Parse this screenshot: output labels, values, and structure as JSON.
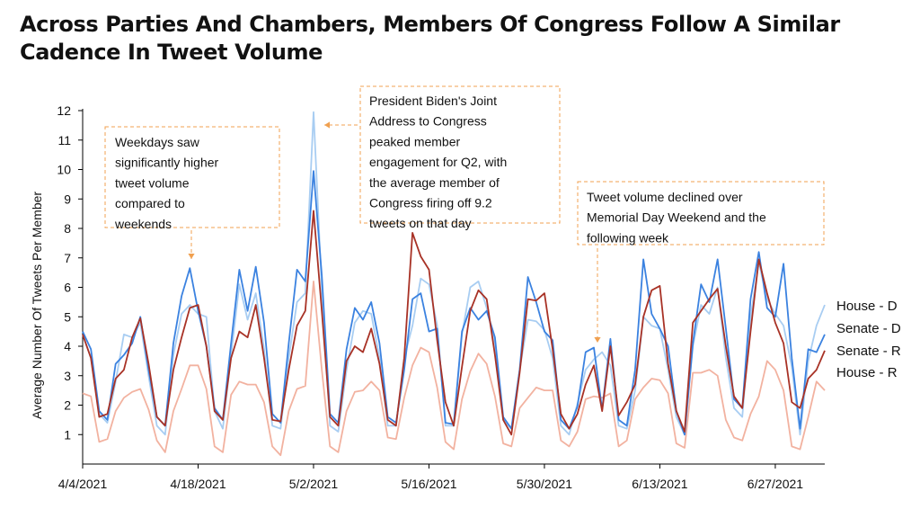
{
  "chart_data": {
    "type": "line",
    "title": "Across Parties And Chambers, Members Of Congress Follow A Similar Cadence In Tweet Volume",
    "xlabel": "",
    "ylabel": "Average Number Of Tweets Per Member",
    "ylim": [
      0,
      12
    ],
    "yticks": [
      1,
      2,
      3,
      4,
      5,
      6,
      7,
      8,
      9,
      10,
      11,
      12
    ],
    "x_start": "4/4/2021",
    "x_end": "6/30/2021",
    "xticks": [
      "4/4/2021",
      "4/18/2021",
      "5/2/2021",
      "5/16/2021",
      "5/30/2021",
      "6/13/2021",
      "6/27/2021"
    ],
    "grid": false,
    "legend": "right",
    "series": [
      {
        "name": "House - D",
        "color": "#3b82e0",
        "values": [
          4.5,
          3.9,
          1.8,
          1.5,
          3.4,
          3.7,
          4.1,
          5.0,
          3.2,
          1.6,
          1.3,
          4.1,
          5.7,
          6.65,
          5.2,
          4.0,
          1.9,
          1.5,
          4.1,
          6.6,
          5.2,
          6.7,
          4.8,
          1.7,
          1.4,
          4.1,
          6.6,
          6.2,
          9.95,
          6.4,
          1.7,
          1.4,
          3.9,
          5.3,
          4.9,
          5.5,
          4.1,
          1.6,
          1.4,
          3.2,
          5.6,
          5.8,
          4.5,
          4.6,
          1.4,
          1.35,
          4.5,
          5.3,
          4.9,
          5.2,
          4.3,
          1.6,
          1.2,
          3.2,
          6.35,
          5.5,
          4.5,
          4.2,
          1.5,
          1.2,
          1.95,
          3.8,
          3.95,
          1.85,
          4.25,
          1.5,
          1.3,
          3.2,
          6.95,
          5.1,
          4.6,
          4.0,
          1.8,
          1.0,
          4.1,
          6.1,
          5.5,
          6.95,
          4.6,
          2.2,
          1.9,
          5.6,
          7.2,
          5.3,
          5.0,
          6.8,
          3.6,
          1.2,
          3.9,
          3.8,
          4.4
        ]
      },
      {
        "name": "Senate - D",
        "color": "#a8cdf2",
        "values": [
          4.4,
          3.6,
          1.7,
          1.4,
          2.8,
          4.4,
          4.3,
          4.8,
          3.0,
          1.3,
          1.0,
          3.7,
          5.1,
          5.4,
          5.1,
          5.0,
          1.8,
          1.2,
          3.7,
          6.1,
          4.9,
          5.8,
          3.9,
          1.3,
          1.2,
          3.6,
          5.5,
          5.8,
          11.95,
          5.9,
          1.3,
          1.1,
          3.2,
          4.8,
          5.2,
          5.1,
          3.6,
          1.3,
          1.3,
          3.6,
          4.7,
          6.3,
          6.1,
          4.7,
          1.3,
          1.3,
          4.4,
          6.0,
          6.2,
          5.3,
          4.1,
          1.5,
          1.2,
          3.2,
          4.9,
          4.85,
          4.55,
          3.6,
          1.3,
          1.0,
          2.05,
          3.2,
          3.55,
          3.8,
          3.35,
          1.3,
          1.2,
          2.5,
          5.0,
          4.7,
          4.6,
          3.2,
          1.6,
          1.0,
          4.0,
          5.4,
          5.1,
          6.0,
          3.6,
          1.9,
          1.6,
          5.0,
          6.85,
          5.6,
          5.1,
          4.7,
          3.3,
          1.0,
          3.5,
          4.7,
          5.4
        ]
      },
      {
        "name": "Senate - R",
        "color": "#a83226",
        "values": [
          4.4,
          3.6,
          1.6,
          1.7,
          2.9,
          3.2,
          4.3,
          4.95,
          3.4,
          1.6,
          1.3,
          3.2,
          4.3,
          5.3,
          5.4,
          4.0,
          1.8,
          1.5,
          3.6,
          4.5,
          4.3,
          5.4,
          3.6,
          1.5,
          1.45,
          3.2,
          4.7,
          5.2,
          8.6,
          5.2,
          1.6,
          1.3,
          3.5,
          4.0,
          3.8,
          4.6,
          3.4,
          1.5,
          1.3,
          3.6,
          7.85,
          7.05,
          6.6,
          4.2,
          2.1,
          1.3,
          3.3,
          5.2,
          5.9,
          5.6,
          3.7,
          1.5,
          1.0,
          3.1,
          5.6,
          5.55,
          5.8,
          3.9,
          1.7,
          1.2,
          1.7,
          2.7,
          3.35,
          1.8,
          4.0,
          1.65,
          2.1,
          2.7,
          5.0,
          5.9,
          6.05,
          3.4,
          1.8,
          1.1,
          4.8,
          5.2,
          5.6,
          5.95,
          4.0,
          2.3,
          1.9,
          4.5,
          6.95,
          5.8,
          4.8,
          4.1,
          2.1,
          1.9,
          2.9,
          3.2,
          3.85
        ]
      },
      {
        "name": "House - R",
        "color": "#f2b2a0",
        "values": [
          2.4,
          2.3,
          0.75,
          0.85,
          1.8,
          2.25,
          2.45,
          2.55,
          1.85,
          0.8,
          0.4,
          1.8,
          2.55,
          3.35,
          3.35,
          2.55,
          0.6,
          0.4,
          2.35,
          2.8,
          2.7,
          2.7,
          2.1,
          0.6,
          0.3,
          1.8,
          2.55,
          2.65,
          6.2,
          3.2,
          0.6,
          0.4,
          1.8,
          2.45,
          2.5,
          2.8,
          2.5,
          0.9,
          0.85,
          2.25,
          3.35,
          3.95,
          3.8,
          2.6,
          0.75,
          0.5,
          2.2,
          3.15,
          3.75,
          3.4,
          2.3,
          0.7,
          0.6,
          1.9,
          2.25,
          2.6,
          2.5,
          2.5,
          0.8,
          0.6,
          1.1,
          2.2,
          2.3,
          2.25,
          2.4,
          0.6,
          0.8,
          2.2,
          2.6,
          2.9,
          2.85,
          2.4,
          0.7,
          0.55,
          3.1,
          3.1,
          3.2,
          3.0,
          1.5,
          0.9,
          0.8,
          1.7,
          2.3,
          3.5,
          3.2,
          2.5,
          0.6,
          0.5,
          1.6,
          2.8,
          2.5
        ]
      }
    ],
    "annotations": [
      {
        "lines": [
          "Weekdays saw",
          "significantly higher",
          "tweet volume",
          "compared to",
          "weekends"
        ]
      },
      {
        "lines": [
          "President Biden's Joint",
          "Address to Congress",
          "peaked member",
          "engagement for Q2, with",
          "the average member of",
          "Congress firing off 9.2",
          "tweets on that day"
        ]
      },
      {
        "lines": [
          "Tweet volume declined over",
          "Memorial Day Weekend and the",
          "following week"
        ]
      }
    ],
    "annotation_color": "#f0a050"
  }
}
